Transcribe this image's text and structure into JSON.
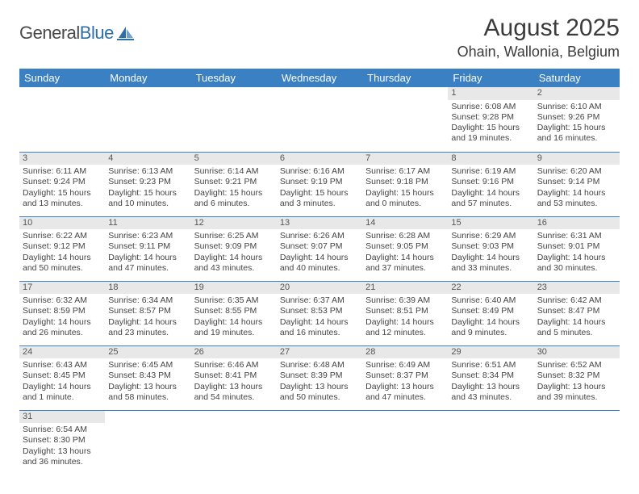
{
  "logo": {
    "word1": "General",
    "word2": "Blue"
  },
  "title": "August 2025",
  "subtitle": "Ohain, Wallonia, Belgium",
  "colors": {
    "header_bg": "#3a80c3",
    "header_text": "#ffffff",
    "row_divider": "#3a80c3",
    "daynum_bg": "#e8e8e8",
    "text": "#444444",
    "logo_blue": "#2f6fa8"
  },
  "layout": {
    "cols": 7,
    "rows": 6,
    "cell_font_size": 10.5,
    "header_font_size": 13,
    "title_font_size": 30,
    "subtitle_font_size": 18
  },
  "weekdays": [
    "Sunday",
    "Monday",
    "Tuesday",
    "Wednesday",
    "Thursday",
    "Friday",
    "Saturday"
  ],
  "weeks": [
    [
      null,
      null,
      null,
      null,
      null,
      {
        "n": "1",
        "sr": "6:08 AM",
        "ss": "9:28 PM",
        "dl": "15 hours and 19 minutes."
      },
      {
        "n": "2",
        "sr": "6:10 AM",
        "ss": "9:26 PM",
        "dl": "15 hours and 16 minutes."
      }
    ],
    [
      {
        "n": "3",
        "sr": "6:11 AM",
        "ss": "9:24 PM",
        "dl": "15 hours and 13 minutes."
      },
      {
        "n": "4",
        "sr": "6:13 AM",
        "ss": "9:23 PM",
        "dl": "15 hours and 10 minutes."
      },
      {
        "n": "5",
        "sr": "6:14 AM",
        "ss": "9:21 PM",
        "dl": "15 hours and 6 minutes."
      },
      {
        "n": "6",
        "sr": "6:16 AM",
        "ss": "9:19 PM",
        "dl": "15 hours and 3 minutes."
      },
      {
        "n": "7",
        "sr": "6:17 AM",
        "ss": "9:18 PM",
        "dl": "15 hours and 0 minutes."
      },
      {
        "n": "8",
        "sr": "6:19 AM",
        "ss": "9:16 PM",
        "dl": "14 hours and 57 minutes."
      },
      {
        "n": "9",
        "sr": "6:20 AM",
        "ss": "9:14 PM",
        "dl": "14 hours and 53 minutes."
      }
    ],
    [
      {
        "n": "10",
        "sr": "6:22 AM",
        "ss": "9:12 PM",
        "dl": "14 hours and 50 minutes."
      },
      {
        "n": "11",
        "sr": "6:23 AM",
        "ss": "9:11 PM",
        "dl": "14 hours and 47 minutes."
      },
      {
        "n": "12",
        "sr": "6:25 AM",
        "ss": "9:09 PM",
        "dl": "14 hours and 43 minutes."
      },
      {
        "n": "13",
        "sr": "6:26 AM",
        "ss": "9:07 PM",
        "dl": "14 hours and 40 minutes."
      },
      {
        "n": "14",
        "sr": "6:28 AM",
        "ss": "9:05 PM",
        "dl": "14 hours and 37 minutes."
      },
      {
        "n": "15",
        "sr": "6:29 AM",
        "ss": "9:03 PM",
        "dl": "14 hours and 33 minutes."
      },
      {
        "n": "16",
        "sr": "6:31 AM",
        "ss": "9:01 PM",
        "dl": "14 hours and 30 minutes."
      }
    ],
    [
      {
        "n": "17",
        "sr": "6:32 AM",
        "ss": "8:59 PM",
        "dl": "14 hours and 26 minutes."
      },
      {
        "n": "18",
        "sr": "6:34 AM",
        "ss": "8:57 PM",
        "dl": "14 hours and 23 minutes."
      },
      {
        "n": "19",
        "sr": "6:35 AM",
        "ss": "8:55 PM",
        "dl": "14 hours and 19 minutes."
      },
      {
        "n": "20",
        "sr": "6:37 AM",
        "ss": "8:53 PM",
        "dl": "14 hours and 16 minutes."
      },
      {
        "n": "21",
        "sr": "6:39 AM",
        "ss": "8:51 PM",
        "dl": "14 hours and 12 minutes."
      },
      {
        "n": "22",
        "sr": "6:40 AM",
        "ss": "8:49 PM",
        "dl": "14 hours and 9 minutes."
      },
      {
        "n": "23",
        "sr": "6:42 AM",
        "ss": "8:47 PM",
        "dl": "14 hours and 5 minutes."
      }
    ],
    [
      {
        "n": "24",
        "sr": "6:43 AM",
        "ss": "8:45 PM",
        "dl": "14 hours and 1 minute."
      },
      {
        "n": "25",
        "sr": "6:45 AM",
        "ss": "8:43 PM",
        "dl": "13 hours and 58 minutes."
      },
      {
        "n": "26",
        "sr": "6:46 AM",
        "ss": "8:41 PM",
        "dl": "13 hours and 54 minutes."
      },
      {
        "n": "27",
        "sr": "6:48 AM",
        "ss": "8:39 PM",
        "dl": "13 hours and 50 minutes."
      },
      {
        "n": "28",
        "sr": "6:49 AM",
        "ss": "8:37 PM",
        "dl": "13 hours and 47 minutes."
      },
      {
        "n": "29",
        "sr": "6:51 AM",
        "ss": "8:34 PM",
        "dl": "13 hours and 43 minutes."
      },
      {
        "n": "30",
        "sr": "6:52 AM",
        "ss": "8:32 PM",
        "dl": "13 hours and 39 minutes."
      }
    ],
    [
      {
        "n": "31",
        "sr": "6:54 AM",
        "ss": "8:30 PM",
        "dl": "13 hours and 36 minutes."
      },
      null,
      null,
      null,
      null,
      null,
      null
    ]
  ],
  "labels": {
    "sunrise": "Sunrise: ",
    "sunset": "Sunset: ",
    "daylight": "Daylight: "
  }
}
